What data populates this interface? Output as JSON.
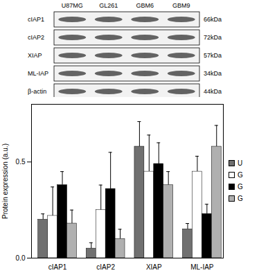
{
  "blot": {
    "lanes": [
      "U87MG",
      "GL261",
      "GBM6",
      "GBM9"
    ],
    "rows": [
      {
        "label": "cIAP1",
        "size": "66kDa"
      },
      {
        "label": "cIAP2",
        "size": "72kDa"
      },
      {
        "label": "XIAP",
        "size": "57kDa"
      },
      {
        "label": "ML-IAP",
        "size": "34kDa"
      },
      {
        "label": "β-actin",
        "size": "44kDa"
      }
    ]
  },
  "chart_data": {
    "type": "bar",
    "y_label": "Protein expression (a.u.)",
    "categories": [
      "cIAP1",
      "cIAP2",
      "XIAP",
      "ML-IAP"
    ],
    "series": [
      {
        "name": "U",
        "color": "#707070",
        "values": [
          0.2,
          0.05,
          0.58,
          0.15
        ],
        "errors": [
          0.03,
          0.03,
          0.13,
          0.03
        ]
      },
      {
        "name": "G",
        "color": "#ffffff",
        "values": [
          0.22,
          0.25,
          0.45,
          0.45
        ],
        "errors": [
          0.15,
          0.13,
          0.19,
          0.08
        ]
      },
      {
        "name": "G",
        "color": "#000000",
        "values": [
          0.38,
          0.36,
          0.49,
          0.23
        ],
        "errors": [
          0.07,
          0.19,
          0.11,
          0.05
        ]
      },
      {
        "name": "G",
        "color": "#b0b0b0",
        "values": [
          0.18,
          0.1,
          0.38,
          0.58
        ],
        "errors": [
          0.07,
          0.05,
          0.07,
          0.11
        ]
      }
    ],
    "ylim": [
      0,
      0.8
    ],
    "yticks": [
      0,
      0.5
    ],
    "grid": false,
    "legend": "right"
  }
}
